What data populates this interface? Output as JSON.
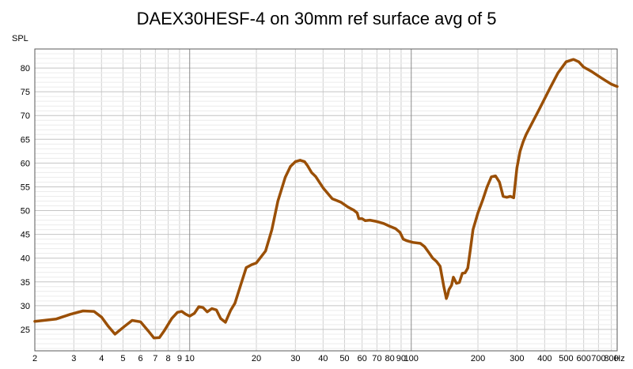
{
  "chart_data": {
    "type": "line",
    "title": "DAEX30HESF-4 on 30mm ref surface avg of 5",
    "ylabel": "SPL",
    "xunit": "Hz",
    "xscale": "log",
    "xlim": [
      2,
      850
    ],
    "ylim": [
      20.5,
      84
    ],
    "xticks": [
      {
        "v": 2,
        "label": "2"
      },
      {
        "v": 3,
        "label": "3"
      },
      {
        "v": 4,
        "label": "4"
      },
      {
        "v": 5,
        "label": "5"
      },
      {
        "v": 6,
        "label": "6"
      },
      {
        "v": 7,
        "label": "7"
      },
      {
        "v": 8,
        "label": "8"
      },
      {
        "v": 9,
        "label": "9"
      },
      {
        "v": 10,
        "label": "10"
      },
      {
        "v": 20,
        "label": "20"
      },
      {
        "v": 30,
        "label": "30"
      },
      {
        "v": 40,
        "label": "40"
      },
      {
        "v": 50,
        "label": "50"
      },
      {
        "v": 60,
        "label": "60"
      },
      {
        "v": 70,
        "label": "70"
      },
      {
        "v": 80,
        "label": "80"
      },
      {
        "v": 90,
        "label": "90"
      },
      {
        "v": 100,
        "label": "100"
      },
      {
        "v": 200,
        "label": "200"
      },
      {
        "v": 300,
        "label": "300"
      },
      {
        "v": 400,
        "label": "400"
      },
      {
        "v": 500,
        "label": "500"
      },
      {
        "v": 600,
        "label": "600"
      },
      {
        "v": 700,
        "label": "700"
      },
      {
        "v": 800,
        "label": "800"
      }
    ],
    "yticks": [
      25,
      30,
      35,
      40,
      45,
      50,
      55,
      60,
      65,
      70,
      75,
      80
    ],
    "grid": true,
    "legend": "none",
    "colors": {
      "line": "#9a4f06",
      "major_grid": "#8c8c8c",
      "minor_grid": "#d0d0d0",
      "axis": "#5a5a5a"
    },
    "series": [
      {
        "x": [
          2,
          2.5,
          2.9,
          3.3,
          3.7,
          4.0,
          4.3,
          4.6,
          5.1,
          5.5,
          6.0,
          6.5,
          6.9,
          7.3,
          7.7,
          8.3,
          8.8,
          9.2,
          9.6,
          10.0,
          10.5,
          11.0,
          11.5,
          12.0,
          12.6,
          13.2,
          13.8,
          14.5,
          15.3,
          16.0,
          17.0,
          18.0,
          19.0,
          20.0,
          21.0,
          22.0,
          23.5,
          25.0,
          27.0,
          28.5,
          30.0,
          31.5,
          33.0,
          34.0,
          35.5,
          37.0,
          40.0,
          44.0,
          48.0,
          52.0,
          55.0,
          57.0,
          58.0,
          60.0,
          62.0,
          65.0,
          70.0,
          75.0,
          80.0,
          85.0,
          89.0,
          92.0,
          95.0,
          98.0,
          102.0,
          110.0,
          115.0,
          120.0,
          125.0,
          130.0,
          135.0,
          140.0,
          144.0,
          146.0,
          148.0,
          152.0,
          155.0,
          160.0,
          165.0,
          170.0,
          175.0,
          180.0,
          185.0,
          190.0,
          200.0,
          210.0,
          220.0,
          230.0,
          240.0,
          250.0,
          260.0,
          270.0,
          280.0,
          290.0,
          300.0,
          310.0,
          320.0,
          330.0,
          350.0,
          380.0,
          420.0,
          460.0,
          500.0,
          540.0,
          570.0,
          600.0,
          650.0,
          700.0,
          750.0,
          800.0,
          850.0
        ],
        "y": [
          26.7,
          27.2,
          28.2,
          28.9,
          28.8,
          27.6,
          25.6,
          24.0,
          25.7,
          26.9,
          26.6,
          24.7,
          23.2,
          23.3,
          24.8,
          27.3,
          28.6,
          28.8,
          28.2,
          27.8,
          28.4,
          29.8,
          29.6,
          28.7,
          29.4,
          29.1,
          27.3,
          26.5,
          29.0,
          30.5,
          34.4,
          38.0,
          38.6,
          39.0,
          40.3,
          41.5,
          46.0,
          52.0,
          57.0,
          59.3,
          60.3,
          60.6,
          60.3,
          59.5,
          58.0,
          57.2,
          54.8,
          52.5,
          51.8,
          50.7,
          50.1,
          49.5,
          48.3,
          48.3,
          47.9,
          48.0,
          47.7,
          47.3,
          46.7,
          46.2,
          45.4,
          44.0,
          43.7,
          43.5,
          43.3,
          43.1,
          42.4,
          41.2,
          40.0,
          39.3,
          38.3,
          34.2,
          31.5,
          32.3,
          33.4,
          34.3,
          36.0,
          34.7,
          34.9,
          36.8,
          36.9,
          37.9,
          42.0,
          46.0,
          49.5,
          52.2,
          55.0,
          57.1,
          57.3,
          56.0,
          53.0,
          52.8,
          53.0,
          52.7,
          59.0,
          62.5,
          64.5,
          66.0,
          68.3,
          71.5,
          75.5,
          79.0,
          81.3,
          81.8,
          81.3,
          80.2,
          79.3,
          78.3,
          77.4,
          76.6,
          76.1
        ]
      }
    ]
  }
}
